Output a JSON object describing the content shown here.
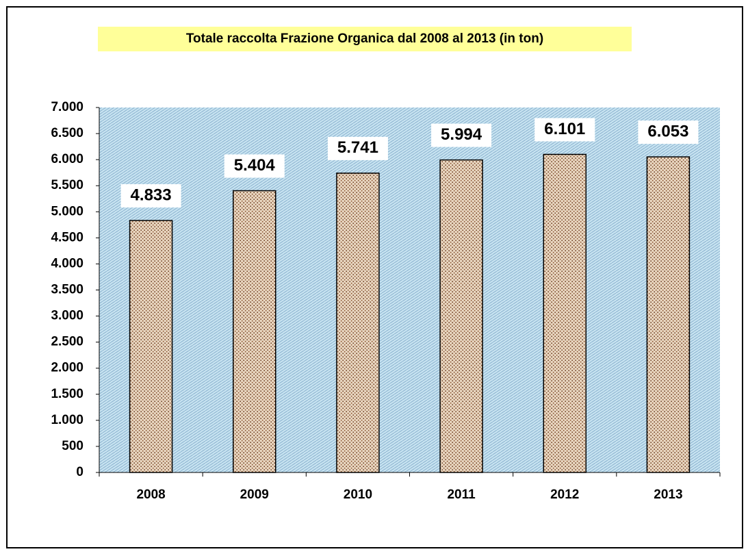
{
  "chart_data": {
    "type": "bar",
    "title": "Totale raccolta Frazione Organica dal 2008 al 2013  (in ton)",
    "categories": [
      "2008",
      "2009",
      "2010",
      "2011",
      "2012",
      "2013"
    ],
    "values": [
      4833,
      5404,
      5741,
      5994,
      6101,
      6053
    ],
    "value_labels": [
      "4.833",
      "5.404",
      "5.741",
      "5.994",
      "6.101",
      "6.053"
    ],
    "color": "#c9a98a",
    "ylim": [
      0,
      7000
    ],
    "yticks": [
      0,
      500,
      {
        "value": 1000,
        "label": "1.000"
      },
      {
        "value": 1500,
        "label": "1.500"
      },
      {
        "value": 2000,
        "label": "2.000"
      },
      {
        "value": 2500,
        "label": "2.500"
      },
      {
        "value": 3000,
        "label": "3.000"
      },
      {
        "value": 3500,
        "label": "3.500"
      },
      {
        "value": 4000,
        "label": "4.000"
      },
      {
        "value": 4500,
        "label": "4.500"
      },
      {
        "value": 5000,
        "label": "5.000"
      },
      {
        "value": 5500,
        "label": "5.500"
      },
      {
        "value": 6000,
        "label": "6.000"
      },
      {
        "value": 6500,
        "label": "6.500"
      },
      {
        "value": 7000,
        "label": "7.000"
      }
    ],
    "grid": false
  }
}
